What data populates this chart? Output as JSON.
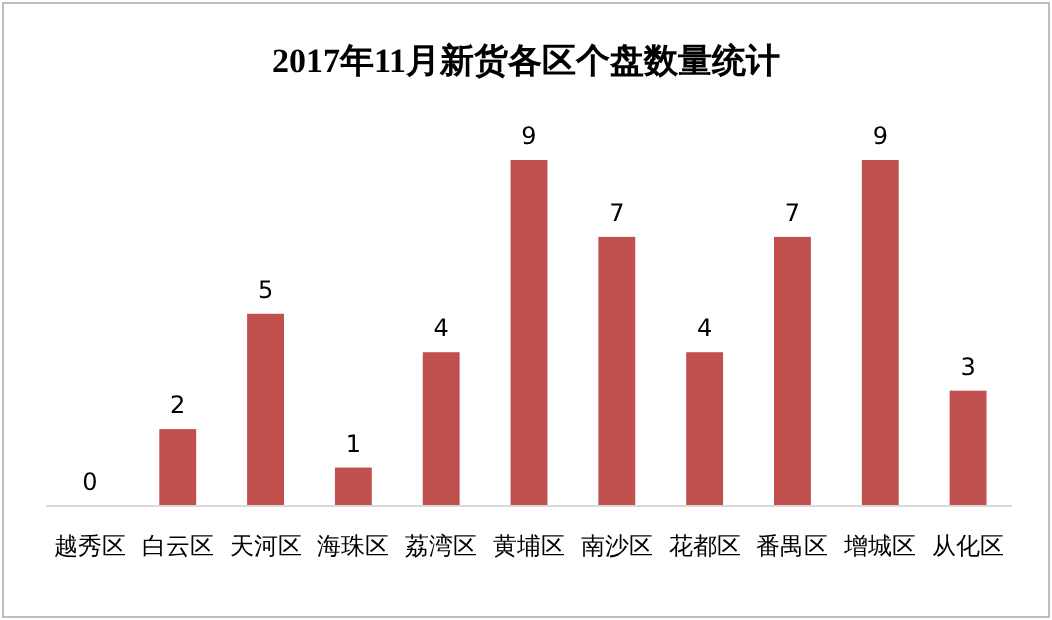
{
  "chart_data": {
    "type": "bar",
    "title": "2017年11月新货各区个盘数量统计",
    "categories": [
      "越秀区",
      "白云区",
      "天河区",
      "海珠区",
      "荔湾区",
      "黄埔区",
      "南沙区",
      "花都区",
      "番禺区",
      "增城区",
      "从化区"
    ],
    "values": [
      0,
      2,
      5,
      1,
      4,
      9,
      7,
      4,
      7,
      9,
      3
    ],
    "color": "#c0504d",
    "data_labels": true
  }
}
